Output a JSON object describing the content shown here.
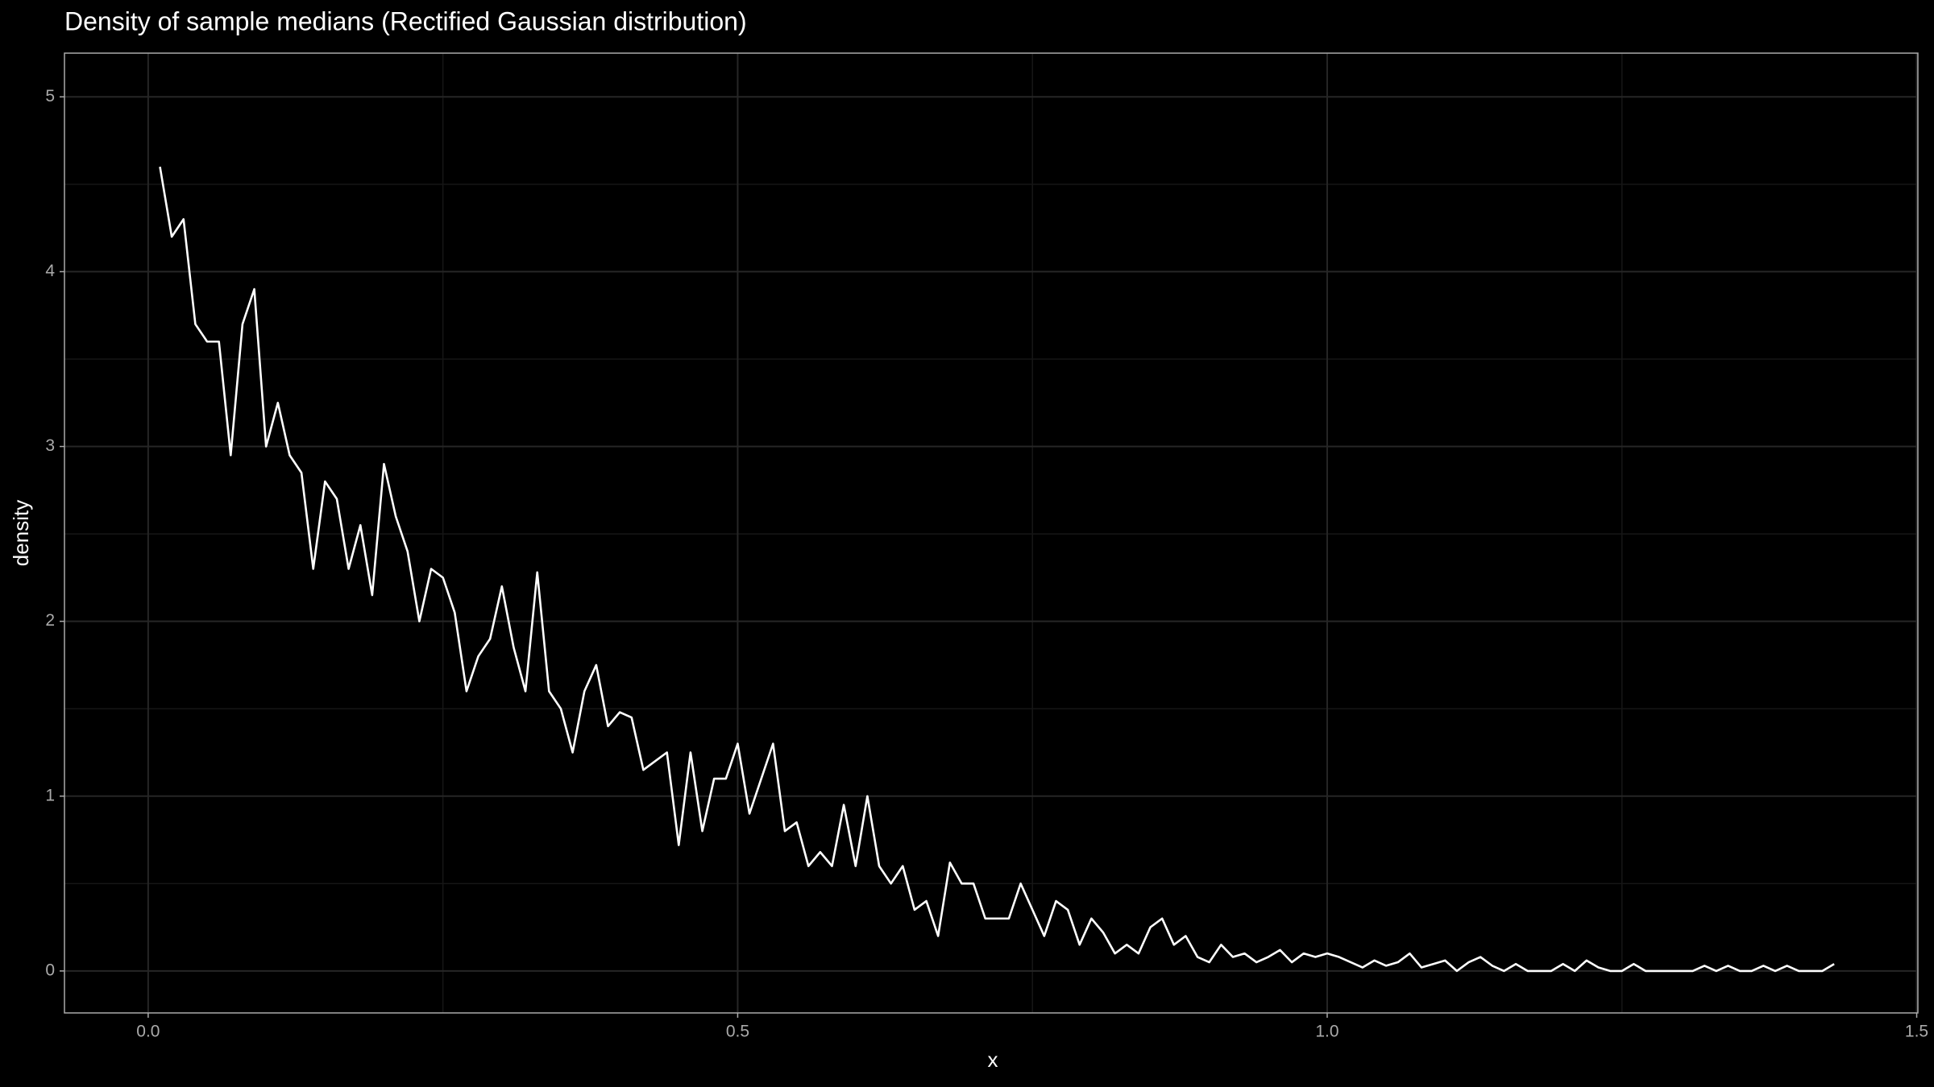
{
  "chart_data": {
    "type": "line",
    "title": "Density of sample medians (Rectified Gaussian distribution)",
    "xlabel": "x",
    "ylabel": "density",
    "x": [
      0.01,
      0.02,
      0.03,
      0.04,
      0.05,
      0.06,
      0.07,
      0.08,
      0.09,
      0.1,
      0.11,
      0.12,
      0.13,
      0.14,
      0.15,
      0.16,
      0.17,
      0.18,
      0.19,
      0.2,
      0.21,
      0.22,
      0.23,
      0.24,
      0.25,
      0.26,
      0.27,
      0.28,
      0.29,
      0.3,
      0.31,
      0.32,
      0.33,
      0.34,
      0.35,
      0.36,
      0.37,
      0.38,
      0.39,
      0.4,
      0.41,
      0.42,
      0.43,
      0.44,
      0.45,
      0.46,
      0.47,
      0.48,
      0.49,
      0.5,
      0.51,
      0.52,
      0.53,
      0.54,
      0.55,
      0.56,
      0.57,
      0.58,
      0.59,
      0.6,
      0.61,
      0.62,
      0.63,
      0.64,
      0.65,
      0.66,
      0.67,
      0.68,
      0.69,
      0.7,
      0.71,
      0.72,
      0.73,
      0.74,
      0.75,
      0.76,
      0.77,
      0.78,
      0.79,
      0.8,
      0.81,
      0.82,
      0.83,
      0.84,
      0.85,
      0.86,
      0.87,
      0.88,
      0.89,
      0.9,
      0.91,
      0.92,
      0.93,
      0.94,
      0.95,
      0.96,
      0.97,
      0.98,
      0.99,
      1.0,
      1.01,
      1.02,
      1.03,
      1.04,
      1.05,
      1.06,
      1.07,
      1.08,
      1.09,
      1.1,
      1.11,
      1.12,
      1.13,
      1.14,
      1.15,
      1.16,
      1.17,
      1.18,
      1.19,
      1.2,
      1.21,
      1.22,
      1.23,
      1.24,
      1.25,
      1.26,
      1.27,
      1.28,
      1.29,
      1.3,
      1.31,
      1.32,
      1.33,
      1.34,
      1.35,
      1.36,
      1.37,
      1.38,
      1.39,
      1.4,
      1.41,
      1.42,
      1.43
    ],
    "series": [
      {
        "color": "#ffffff",
        "values": [
          4.6,
          4.2,
          4.3,
          3.7,
          3.6,
          3.6,
          2.95,
          3.7,
          3.9,
          3.0,
          3.25,
          2.95,
          2.85,
          2.3,
          2.8,
          2.7,
          2.3,
          2.55,
          2.15,
          2.9,
          2.6,
          2.4,
          2.0,
          2.3,
          2.25,
          2.05,
          1.6,
          1.8,
          1.9,
          2.2,
          1.85,
          1.6,
          2.28,
          1.6,
          1.5,
          1.25,
          1.6,
          1.75,
          1.4,
          1.48,
          1.45,
          1.15,
          1.2,
          1.25,
          0.72,
          1.25,
          0.8,
          1.1,
          1.1,
          1.3,
          0.9,
          1.1,
          1.3,
          0.8,
          0.85,
          0.6,
          0.68,
          0.6,
          0.95,
          0.6,
          1.0,
          0.6,
          0.5,
          0.6,
          0.35,
          0.4,
          0.2,
          0.62,
          0.5,
          0.5,
          0.3,
          0.3,
          0.3,
          0.5,
          0.35,
          0.2,
          0.4,
          0.35,
          0.15,
          0.3,
          0.22,
          0.1,
          0.15,
          0.1,
          0.25,
          0.3,
          0.15,
          0.2,
          0.08,
          0.05,
          0.15,
          0.08,
          0.1,
          0.05,
          0.08,
          0.12,
          0.05,
          0.1,
          0.08,
          0.1,
          0.08,
          0.05,
          0.02,
          0.06,
          0.03,
          0.05,
          0.1,
          0.02,
          0.04,
          0.06,
          0,
          0.05,
          0.08,
          0.03,
          0,
          0.04,
          0,
          0,
          0,
          0.04,
          0,
          0.06,
          0.02,
          0,
          0,
          0.04,
          0,
          0,
          0,
          0,
          0,
          0.03,
          0,
          0.03,
          0,
          0,
          0.03,
          0,
          0.03,
          0,
          0,
          0,
          0.04
        ]
      }
    ],
    "xlim": [
      -0.071,
      1.501
    ],
    "ylim": [
      -0.24,
      5.25
    ],
    "xticks": [
      {
        "value": 0,
        "label": "0.0"
      },
      0.5,
      {
        "value": 1,
        "label": "1.0"
      },
      1.5
    ],
    "yticks": [
      0,
      1,
      2,
      3,
      4,
      5
    ],
    "grid": true
  }
}
